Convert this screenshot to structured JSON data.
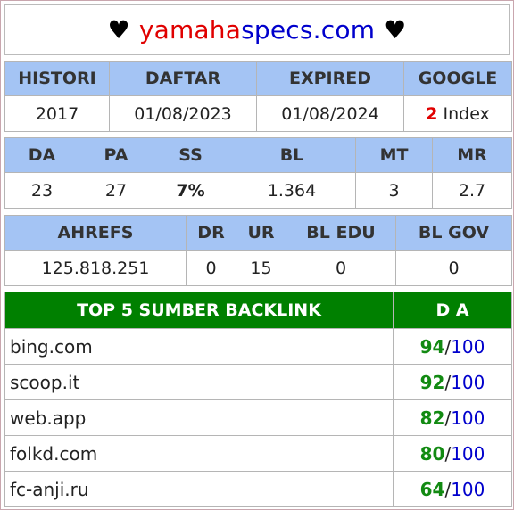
{
  "title": {
    "prefix": "♥",
    "part1": "yamaha",
    "part2": "specs.com",
    "suffix": "♥"
  },
  "table1": {
    "headers": [
      "HISTORI",
      "DAFTAR",
      "EXPIRED",
      "GOOGLE"
    ],
    "values": {
      "histori": "2017",
      "daftar": "01/08/2023",
      "expired": "01/08/2024",
      "google_count": "2",
      "google_label": "Index"
    }
  },
  "table2": {
    "headers": [
      "DA",
      "PA",
      "SS",
      "BL",
      "MT",
      "MR"
    ],
    "values": [
      "23",
      "27",
      "7%",
      "1.364",
      "3",
      "2.7"
    ]
  },
  "table3": {
    "headers": [
      "AHREFS",
      "DR",
      "UR",
      "BL EDU",
      "BL GOV"
    ],
    "values": [
      "125.818.251",
      "0",
      "15",
      "0",
      "0"
    ]
  },
  "backlinks": {
    "header_source": "TOP 5 SUMBER BACKLINK",
    "header_da": "D A",
    "separator": "/",
    "rows": [
      {
        "site": "bing.com",
        "da": "94",
        "max": "100"
      },
      {
        "site": "scoop.it",
        "da": "92",
        "max": "100"
      },
      {
        "site": "web.app",
        "da": "82",
        "max": "100"
      },
      {
        "site": "folkd.com",
        "da": "80",
        "max": "100"
      },
      {
        "site": "fc-anji.ru",
        "da": "64",
        "max": "100"
      }
    ]
  },
  "colors": {
    "header_blue": "#a4c4f4",
    "header_green": "#008000",
    "red": "#e00000",
    "blue": "#0000cc",
    "green": "#128a12"
  }
}
